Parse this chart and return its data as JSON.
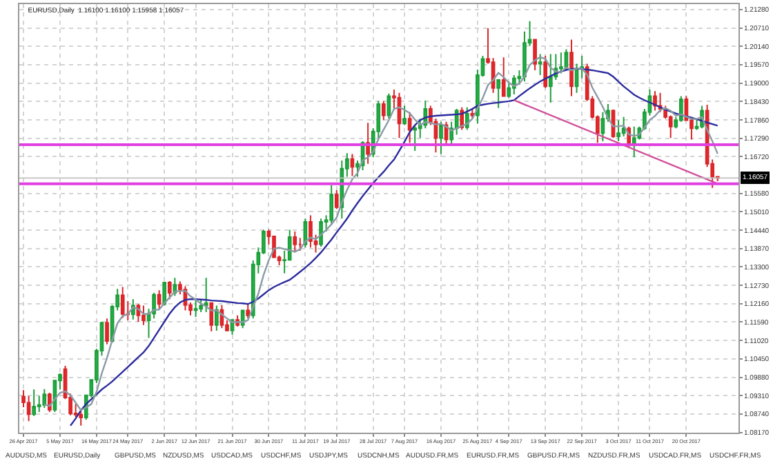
{
  "chart_data": {
    "type": "candlestick",
    "title": "EURUSD,Daily  1.16100 1.16100 1.15958 1.16057",
    "categories": [
      "26 Apr 2017",
      null,
      null,
      null,
      null,
      null,
      null,
      "5 May 2017",
      null,
      null,
      null,
      null,
      null,
      null,
      "16 May 2017",
      null,
      null,
      null,
      null,
      null,
      "24 May 2017",
      null,
      null,
      null,
      null,
      null,
      null,
      "2 Jun 2017",
      null,
      null,
      null,
      null,
      null,
      "12 Jun 2017",
      null,
      null,
      null,
      null,
      null,
      null,
      "21 Jun 2017",
      null,
      null,
      null,
      null,
      null,
      null,
      "30 Jun 2017",
      null,
      null,
      null,
      null,
      null,
      null,
      "11 Jul 2017",
      null,
      null,
      null,
      null,
      null,
      "19 Jul 2017",
      null,
      null,
      null,
      null,
      null,
      null,
      "28 Jul 2017",
      null,
      null,
      null,
      null,
      null,
      "7 Aug 2017",
      null,
      null,
      null,
      null,
      null,
      null,
      "16 Aug 2017",
      null,
      null,
      null,
      null,
      null,
      null,
      "25 Aug 2017",
      null,
      null,
      null,
      null,
      null,
      "4 Sep 2017",
      null,
      null,
      null,
      null,
      null,
      null,
      "13 Sep 2017",
      null,
      null,
      null,
      null,
      null,
      null,
      "22 Sep 2017",
      null,
      null,
      null,
      null,
      null,
      null,
      "3 Oct 2017",
      null,
      null,
      null,
      null,
      null,
      "11 Oct 2017",
      null,
      null,
      null,
      null,
      null,
      null,
      "20 Oct 2017",
      null,
      null,
      null,
      null,
      null,
      null
    ],
    "ohlc": [
      [
        1.0928,
        1.0948,
        1.0895,
        1.091
      ],
      [
        1.0909,
        1.093,
        1.0852,
        1.0873
      ],
      [
        1.0873,
        1.095,
        1.0868,
        1.0897
      ],
      [
        1.0897,
        1.093,
        1.088,
        1.0902
      ],
      [
        1.0902,
        1.0951,
        1.0893,
        1.0935
      ],
      [
        1.0935,
        1.094,
        1.088,
        1.0887
      ],
      [
        1.0887,
        1.098,
        1.088,
        1.0978
      ],
      [
        1.0978,
        1.1,
        1.095,
        1.0996
      ],
      [
        1.1013,
        1.1023,
        1.092,
        1.0925
      ],
      [
        1.0925,
        1.0937,
        1.087,
        1.0876
      ],
      [
        1.0876,
        1.0905,
        1.0865,
        1.0872
      ],
      [
        1.0872,
        1.0882,
        1.0838,
        1.0863
      ],
      [
        1.0863,
        1.0934,
        1.0856,
        1.0932
      ],
      [
        1.0932,
        1.0982,
        1.0925,
        1.098
      ],
      [
        1.098,
        1.1076,
        1.097,
        1.107
      ],
      [
        1.107,
        1.116,
        1.1055,
        1.1157
      ],
      [
        1.1157,
        1.117,
        1.109,
        1.11
      ],
      [
        1.11,
        1.1212,
        1.1095,
        1.1207
      ],
      [
        1.1207,
        1.1262,
        1.1195,
        1.1242
      ],
      [
        1.1242,
        1.1268,
        1.1172,
        1.1184
      ],
      [
        1.1184,
        1.1224,
        1.1165,
        1.1183
      ],
      [
        1.1183,
        1.123,
        1.1167,
        1.121
      ],
      [
        1.121,
        1.1215,
        1.116,
        1.118
      ],
      [
        1.118,
        1.121,
        1.115,
        1.1164
      ],
      [
        1.1164,
        1.12,
        1.111,
        1.1185
      ],
      [
        1.1185,
        1.125,
        1.117,
        1.1244
      ],
      [
        1.1244,
        1.1258,
        1.12,
        1.1215
      ],
      [
        1.1215,
        1.1284,
        1.121,
        1.1282
      ],
      [
        1.1282,
        1.1286,
        1.123,
        1.125
      ],
      [
        1.125,
        1.1296,
        1.124,
        1.1275
      ],
      [
        1.1275,
        1.1285,
        1.1245,
        1.126
      ],
      [
        1.126,
        1.127,
        1.1195,
        1.1212
      ],
      [
        1.1212,
        1.122,
        1.118,
        1.1196
      ],
      [
        1.1196,
        1.123,
        1.1175,
        1.12
      ],
      [
        1.12,
        1.123,
        1.119,
        1.121
      ],
      [
        1.121,
        1.1296,
        1.119,
        1.1218
      ],
      [
        1.1218,
        1.122,
        1.113,
        1.115
      ],
      [
        1.115,
        1.121,
        1.1132,
        1.1197
      ],
      [
        1.1197,
        1.1212,
        1.114,
        1.115
      ],
      [
        1.115,
        1.1165,
        1.113,
        1.1133
      ],
      [
        1.1133,
        1.1167,
        1.112,
        1.1166
      ],
      [
        1.1166,
        1.118,
        1.1145,
        1.115
      ],
      [
        1.115,
        1.1195,
        1.114,
        1.1195
      ],
      [
        1.1195,
        1.1215,
        1.117,
        1.118
      ],
      [
        1.118,
        1.135,
        1.117,
        1.1338
      ],
      [
        1.1338,
        1.139,
        1.131,
        1.1374
      ],
      [
        1.1374,
        1.1445,
        1.137,
        1.144
      ],
      [
        1.144,
        1.1446,
        1.14,
        1.1425
      ],
      [
        1.1425,
        1.1425,
        1.1358,
        1.136
      ],
      [
        1.136,
        1.1365,
        1.1335,
        1.135
      ],
      [
        1.135,
        1.138,
        1.131,
        1.1352
      ],
      [
        1.1352,
        1.1445,
        1.135,
        1.1423
      ],
      [
        1.1423,
        1.144,
        1.1375,
        1.14
      ],
      [
        1.14,
        1.142,
        1.138,
        1.14
      ],
      [
        1.14,
        1.148,
        1.139,
        1.147
      ],
      [
        1.147,
        1.149,
        1.139,
        1.141
      ],
      [
        1.141,
        1.143,
        1.1375,
        1.14
      ],
      [
        1.14,
        1.148,
        1.1393,
        1.147
      ],
      [
        1.147,
        1.149,
        1.144,
        1.1475
      ],
      [
        1.1475,
        1.1583,
        1.1465,
        1.1555
      ],
      [
        1.1555,
        1.1568,
        1.151,
        1.1515
      ],
      [
        1.1515,
        1.166,
        1.148,
        1.1635
      ],
      [
        1.1635,
        1.1683,
        1.161,
        1.1665
      ],
      [
        1.1665,
        1.168,
        1.1612,
        1.164
      ],
      [
        1.164,
        1.166,
        1.161,
        1.165
      ],
      [
        1.1645,
        1.172,
        1.163,
        1.1715
      ],
      [
        1.1715,
        1.1777,
        1.165,
        1.168
      ],
      [
        1.168,
        1.176,
        1.167,
        1.175
      ],
      [
        1.175,
        1.1845,
        1.173,
        1.1835
      ],
      [
        1.1835,
        1.1845,
        1.1785,
        1.18
      ],
      [
        1.18,
        1.1868,
        1.179,
        1.186
      ],
      [
        1.186,
        1.188,
        1.182,
        1.1855
      ],
      [
        1.1855,
        1.187,
        1.173,
        1.1775
      ],
      [
        1.1775,
        1.183,
        1.177,
        1.179
      ],
      [
        1.179,
        1.181,
        1.1715,
        1.1755
      ],
      [
        1.1755,
        1.177,
        1.169,
        1.176
      ],
      [
        1.176,
        1.179,
        1.173,
        1.177
      ],
      [
        1.177,
        1.1846,
        1.176,
        1.182
      ],
      [
        1.182,
        1.183,
        1.177,
        1.178
      ],
      [
        1.178,
        1.179,
        1.1685,
        1.173
      ],
      [
        1.173,
        1.178,
        1.168,
        1.177
      ],
      [
        1.177,
        1.178,
        1.1705,
        1.1725
      ],
      [
        1.1725,
        1.178,
        1.171,
        1.176
      ],
      [
        1.176,
        1.182,
        1.174,
        1.1815
      ],
      [
        1.1815,
        1.1825,
        1.1755,
        1.1763
      ],
      [
        1.1763,
        1.1825,
        1.1755,
        1.1805
      ],
      [
        1.1805,
        1.182,
        1.179,
        1.18
      ],
      [
        1.18,
        1.1942,
        1.1775,
        1.1925
      ],
      [
        1.1925,
        1.1985,
        1.192,
        1.1975
      ],
      [
        1.1975,
        1.207,
        1.196,
        1.1965
      ],
      [
        1.1965,
        1.1978,
        1.187,
        1.1885
      ],
      [
        1.1885,
        1.191,
        1.1823,
        1.191
      ],
      [
        1.191,
        1.198,
        1.186,
        1.186
      ],
      [
        1.186,
        1.1905,
        1.1855,
        1.1885
      ],
      [
        1.1885,
        1.1925,
        1.1865,
        1.1915
      ],
      [
        1.1915,
        1.194,
        1.1895,
        1.192
      ],
      [
        1.192,
        1.206,
        1.1905,
        1.2025
      ],
      [
        1.2025,
        1.2092,
        1.2015,
        1.2035
      ],
      [
        1.2035,
        1.2035,
        1.194,
        1.196
      ],
      [
        1.196,
        1.199,
        1.1925,
        1.1965
      ],
      [
        1.1965,
        1.1985,
        1.1885,
        1.189
      ],
      [
        1.189,
        1.199,
        1.184,
        1.192
      ],
      [
        1.192,
        1.199,
        1.191,
        1.1945
      ],
      [
        1.1945,
        1.1995,
        1.193,
        1.195
      ],
      [
        1.195,
        1.2005,
        1.194,
        1.1995
      ],
      [
        1.1995,
        1.2035,
        1.186,
        1.189
      ],
      [
        1.189,
        1.196,
        1.187,
        1.1945
      ],
      [
        1.1945,
        1.1985,
        1.1915,
        1.195
      ],
      [
        1.195,
        1.196,
        1.1845,
        1.185
      ],
      [
        1.185,
        1.186,
        1.179,
        1.1795
      ],
      [
        1.1795,
        1.18,
        1.1715,
        1.1745
      ],
      [
        1.1745,
        1.181,
        1.172,
        1.179
      ],
      [
        1.179,
        1.1835,
        1.178,
        1.1815
      ],
      [
        1.1815,
        1.1818,
        1.173,
        1.1735
      ],
      [
        1.1735,
        1.1785,
        1.172,
        1.1745
      ],
      [
        1.1745,
        1.1795,
        1.1735,
        1.176
      ],
      [
        1.176,
        1.1765,
        1.17,
        1.171
      ],
      [
        1.171,
        1.1765,
        1.167,
        1.173
      ],
      [
        1.173,
        1.1765,
        1.1725,
        1.176
      ],
      [
        1.176,
        1.182,
        1.1755,
        1.181
      ],
      [
        1.181,
        1.188,
        1.18,
        1.186
      ],
      [
        1.186,
        1.1875,
        1.1815,
        1.183
      ],
      [
        1.183,
        1.187,
        1.181,
        1.182
      ],
      [
        1.182,
        1.183,
        1.179,
        1.1795
      ],
      [
        1.1795,
        1.18,
        1.173,
        1.1765
      ],
      [
        1.1765,
        1.1795,
        1.176,
        1.1785
      ],
      [
        1.1785,
        1.186,
        1.178,
        1.185
      ],
      [
        1.185,
        1.186,
        1.1785,
        1.1785
      ],
      [
        1.1785,
        1.179,
        1.1725,
        1.176
      ],
      [
        1.176,
        1.179,
        1.1755,
        1.1765
      ],
      [
        1.1765,
        1.183,
        1.176,
        1.1815
      ],
      [
        1.1815,
        1.1833,
        1.164,
        1.165
      ],
      [
        1.165,
        1.1663,
        1.1575,
        1.161
      ],
      [
        1.161,
        1.161,
        1.15958,
        1.16057
      ]
    ],
    "series": [
      {
        "type": "line",
        "color": "#2b2b9e",
        "values": [
          null,
          null,
          null,
          null,
          null,
          null,
          null,
          null,
          null,
          1.0838,
          1.086,
          1.0885,
          1.0905,
          1.092,
          1.0935,
          1.095,
          1.0962,
          1.0975,
          1.099,
          1.1005,
          1.102,
          1.1035,
          1.105,
          1.1065,
          1.1085,
          1.111,
          1.1135,
          1.116,
          1.1185,
          1.1205,
          1.122,
          1.1228,
          1.123,
          1.123,
          1.1229,
          1.1228,
          1.1226,
          1.1225,
          1.1224,
          1.1222,
          1.122,
          1.1218,
          1.1217,
          1.1215,
          1.1222,
          1.1232,
          1.1245,
          1.1258,
          1.1268,
          1.1276,
          1.1283,
          1.129,
          1.1302,
          1.1315,
          1.1328,
          1.1342,
          1.1358,
          1.1375,
          1.1395,
          1.1415,
          1.1437,
          1.1458,
          1.148,
          1.1505,
          1.1528,
          1.155,
          1.157,
          1.159,
          1.1608,
          1.1625,
          1.1645,
          1.1663,
          1.169,
          1.1718,
          1.1748,
          1.177,
          1.1785,
          1.1793,
          1.1797,
          1.1799,
          1.18,
          1.1801,
          1.1802,
          1.1803,
          1.1805,
          1.1812,
          1.182,
          1.183,
          1.1833,
          1.1836,
          1.1838,
          1.184,
          1.1842,
          1.1844,
          1.1847,
          1.186,
          1.1872,
          1.1884,
          1.1895,
          1.1905,
          1.1914,
          1.1922,
          1.193,
          1.1936,
          1.1941,
          1.1944,
          1.1945,
          1.1944,
          1.1942,
          1.194,
          1.1937,
          1.1934,
          1.1931,
          1.192,
          1.1905,
          1.189,
          1.1877,
          1.1864,
          1.1855,
          1.1847,
          1.184,
          1.1833,
          1.1825,
          1.1818,
          1.1812,
          1.1806,
          1.1801,
          1.1797,
          1.1793,
          1.1788,
          1.1783,
          1.1778,
          1.1773,
          1.1768
        ]
      },
      {
        "type": "line",
        "color": "#8c9aa6",
        "values": [
          null,
          null,
          null,
          null,
          1.0903,
          1.0899,
          1.092,
          1.094,
          1.0944,
          1.0932,
          1.0909,
          1.0886,
          1.0894,
          1.0905,
          1.0943,
          1.1,
          1.1048,
          1.1103,
          1.1155,
          1.1178,
          1.1183,
          1.1205,
          1.12,
          1.1184,
          1.1184,
          1.1197,
          1.1198,
          1.1218,
          1.1235,
          1.1253,
          1.1256,
          1.1256,
          1.1239,
          1.1229,
          1.1216,
          1.1207,
          1.1195,
          1.1195,
          1.1183,
          1.117,
          1.1159,
          1.1159,
          1.1159,
          1.1165,
          1.1206,
          1.1247,
          1.1305,
          1.1351,
          1.1387,
          1.139,
          1.1385,
          1.1382,
          1.1377,
          1.1385,
          1.1409,
          1.1421,
          1.1416,
          1.143,
          1.1445,
          1.1462,
          1.1483,
          1.153,
          1.1569,
          1.1602,
          1.1621,
          1.1661,
          1.167,
          1.1687,
          1.1726,
          1.1756,
          1.1785,
          1.182,
          1.1825,
          1.1817,
          1.1807,
          1.1787,
          1.177,
          1.1779,
          1.1777,
          1.1772,
          1.1774,
          1.1765,
          1.1753,
          1.176,
          1.1767,
          1.1774,
          1.1789,
          1.1822,
          1.1854,
          1.1894,
          1.191,
          1.1932,
          1.1919,
          1.1901,
          1.1891,
          1.1898,
          1.1921,
          1.1956,
          1.1971,
          1.1981,
          1.1975,
          1.1948,
          1.1936,
          1.1934,
          1.1949,
          1.194,
          1.1945,
          1.1946,
          1.1926,
          1.1886,
          1.1857,
          1.1826,
          1.1791,
          1.1766,
          1.1766,
          1.1769,
          1.1741,
          1.1736,
          1.1741,
          1.1762,
          1.1786,
          1.1798,
          1.1816,
          1.1823,
          1.1814,
          1.1799,
          1.1803,
          1.1796,
          1.1789,
          1.1789,
          1.1795,
          1.1755,
          1.172,
          1.1681
        ]
      },
      {
        "type": "line",
        "color": "#d0509a",
        "values": [
          null,
          null,
          null,
          null,
          null,
          null,
          null,
          null,
          null,
          null,
          null,
          null,
          null,
          null,
          null,
          null,
          null,
          null,
          null,
          null,
          null,
          null,
          null,
          null,
          null,
          null,
          null,
          null,
          null,
          null,
          null,
          null,
          null,
          null,
          null,
          null,
          null,
          null,
          null,
          null,
          null,
          null,
          null,
          null,
          null,
          null,
          null,
          null,
          null,
          null,
          null,
          null,
          null,
          null,
          null,
          null,
          null,
          null,
          null,
          null,
          null,
          null,
          null,
          null,
          null,
          null,
          null,
          null,
          null,
          null,
          null,
          null,
          null,
          null,
          null,
          null,
          null,
          null,
          null,
          null,
          null,
          null,
          null,
          null,
          null,
          null,
          null,
          null,
          null,
          null,
          null,
          null,
          null,
          null,
          1.1847,
          null,
          null,
          null,
          null,
          null,
          null,
          null,
          null,
          null,
          null,
          null,
          null,
          null,
          null,
          null,
          null,
          null,
          null,
          null,
          null,
          null,
          null,
          null,
          null,
          null,
          null,
          null,
          null,
          null,
          null,
          null,
          null,
          null,
          null,
          null,
          null,
          null,
          null,
          1.1588
        ]
      }
    ],
    "ylim": [
      1.0816,
      1.2145
    ],
    "yticks": [
      {
        "value": 1.2128,
        "label": "1.21280"
      },
      {
        "value": 1.2071,
        "label": "1.20710"
      },
      {
        "value": 1.2014,
        "label": "1.20140"
      },
      {
        "value": 1.1957,
        "label": "1.19570"
      },
      {
        "value": 1.19,
        "label": "1.19000"
      },
      {
        "value": 1.1843,
        "label": "1.18430"
      },
      {
        "value": 1.1786,
        "label": "1.17860"
      },
      {
        "value": 1.1729,
        "label": "1.17290"
      },
      {
        "value": 1.1672,
        "label": "1.16720"
      },
      {
        "value": 1.1558,
        "label": "1.15580"
      },
      {
        "value": 1.1501,
        "label": "1.15010"
      },
      {
        "value": 1.1444,
        "label": "1.14440"
      },
      {
        "value": 1.1387,
        "label": "1.13870"
      },
      {
        "value": 1.133,
        "label": "1.13300"
      },
      {
        "value": 1.1273,
        "label": "1.12730"
      },
      {
        "value": 1.1216,
        "label": "1.12160"
      },
      {
        "value": 1.1159,
        "label": "1.11590"
      },
      {
        "value": 1.1102,
        "label": "1.11020"
      },
      {
        "value": 1.1045,
        "label": "1.10450"
      },
      {
        "value": 1.0988,
        "label": "1.09880"
      },
      {
        "value": 1.0931,
        "label": "1.09310"
      },
      {
        "value": 1.0874,
        "label": "1.08740"
      },
      {
        "value": 1.0817,
        "label": "1.08170"
      }
    ],
    "grid": true,
    "ref_lines": [
      {
        "axis": "y",
        "value": 1.1709,
        "color": "#e040e0"
      },
      {
        "axis": "y",
        "value": 1.1588,
        "color": "#e040e0"
      },
      {
        "axis": "y",
        "value": 1.16057,
        "color": "#c0c0c0",
        "label": "1.16057"
      }
    ],
    "annotations": [
      "AUDUSD,MS",
      "EURUSD,Daily",
      "GBPUSD,MS",
      "NZDUSD,MS",
      "USDCAD,MS",
      "USDCHF,MS",
      "USDJPY,MS",
      "USDCNH,MS",
      "AUDUSD.FR,MS",
      "EURUSD.FR,MS",
      "GBPUSD.FR,MS",
      "NZDUSD.FR,MS",
      "USDCAD.FR,MS",
      "USDCHF.FR,MS"
    ]
  }
}
